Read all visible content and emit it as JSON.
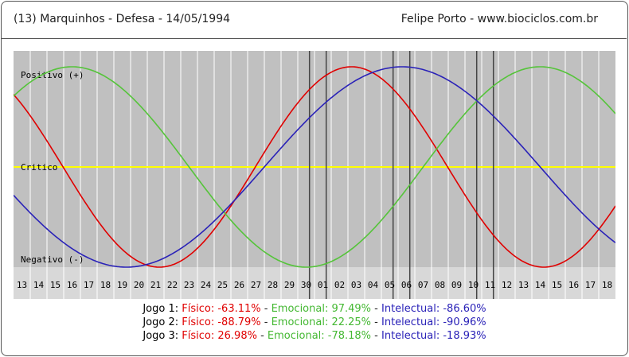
{
  "header": {
    "left": "(13)  Marquinhos - Defesa -  14/05/1994",
    "right": "Felipe Porto   -   www.biociclos.com.br"
  },
  "colors": {
    "fisico": "#e00000",
    "emocional": "#55c43a",
    "intelectual": "#2a22b8",
    "critico": "#ffff00",
    "background": "#c0c0c0"
  },
  "chart_data": {
    "type": "line",
    "x": [
      "13",
      "14",
      "15",
      "16",
      "17",
      "18",
      "19",
      "20",
      "21",
      "22",
      "23",
      "24",
      "25",
      "26",
      "27",
      "28",
      "29",
      "30",
      "01",
      "02",
      "03",
      "04",
      "05",
      "06",
      "07",
      "08",
      "09",
      "10",
      "11",
      "12",
      "13",
      "14",
      "15",
      "16",
      "17",
      "18"
    ],
    "ylim": [
      -100,
      100
    ],
    "labels": {
      "positivo": "Positivo (+)",
      "critico": "Critico",
      "negativo": "Negativo (-)"
    },
    "series": [
      {
        "key": "fisico",
        "period": 23,
        "values": [
          62.3,
          39.8,
          13.6,
          -13.6,
          -39.8,
          -63.1,
          -81.7,
          -94.2,
          -99.8,
          -97.9,
          -88.8,
          -73.1,
          -52,
          -27,
          0,
          27,
          52,
          73.1,
          88.8,
          97.9,
          99.8,
          94.2,
          81.7,
          63.1,
          39.8,
          13.6,
          -13.6,
          -39.8,
          -63.1,
          -81.7,
          -94.2,
          -99.8,
          -97.9,
          -88.8,
          -73.1,
          -52
        ]
      },
      {
        "key": "emocional",
        "period": 28,
        "values": [
          78.2,
          90.1,
          97.5,
          100,
          97.5,
          90.1,
          78.2,
          62.3,
          43.4,
          22.3,
          0,
          -22.3,
          -43.4,
          -62.3,
          -78.2,
          -90.1,
          -97.5,
          -100,
          -97.5,
          -90.1,
          -78.2,
          -62.3,
          -43.4,
          -22.3,
          0,
          22.3,
          43.4,
          62.3,
          78.2,
          90.1,
          97.5,
          100,
          97.5,
          90.1,
          78.2,
          62.3
        ]
      },
      {
        "key": "intelectual",
        "period": 33,
        "values": [
          -37.2,
          -54.1,
          -69,
          -81.5,
          -91,
          -97.3,
          -99.9,
          -98.9,
          -94.5,
          -86.6,
          -75.6,
          -61.8,
          -45.8,
          -28.1,
          -9.5,
          9.5,
          28.1,
          45.8,
          61.8,
          75.6,
          86.6,
          94.5,
          98.9,
          99.9,
          97.3,
          91,
          81.5,
          69,
          54.1,
          37.2,
          18.9,
          0,
          -18.9,
          -37.2,
          -54.1,
          -69
        ]
      }
    ],
    "markers": [
      {
        "jogo": "Jogo 1",
        "x": 17.7
      },
      {
        "jogo": "Jogo 1",
        "x": 18.7
      },
      {
        "jogo": "Jogo 2",
        "x": 22.7
      },
      {
        "jogo": "Jogo 2",
        "x": 23.7
      },
      {
        "jogo": "Jogo 3",
        "x": 27.7
      },
      {
        "jogo": "Jogo 3",
        "x": 28.7
      }
    ]
  },
  "jogos": [
    {
      "label": "Jogo 1:",
      "fisico": "Físico: -63.11%",
      "emocional": "Emocional: 97.49%",
      "intelectual": "Intelectual: -86.60%"
    },
    {
      "label": "Jogo 2:",
      "fisico": "Físico: -88.79%",
      "emocional": "Emocional: 22.25%",
      "intelectual": "Intelectual: -90.96%"
    },
    {
      "label": "Jogo 3:",
      "fisico": "Físico: 26.98%",
      "emocional": "Emocional: -78.18%",
      "intelectual": "Intelectual: -18.93%"
    }
  ],
  "separator": " - "
}
